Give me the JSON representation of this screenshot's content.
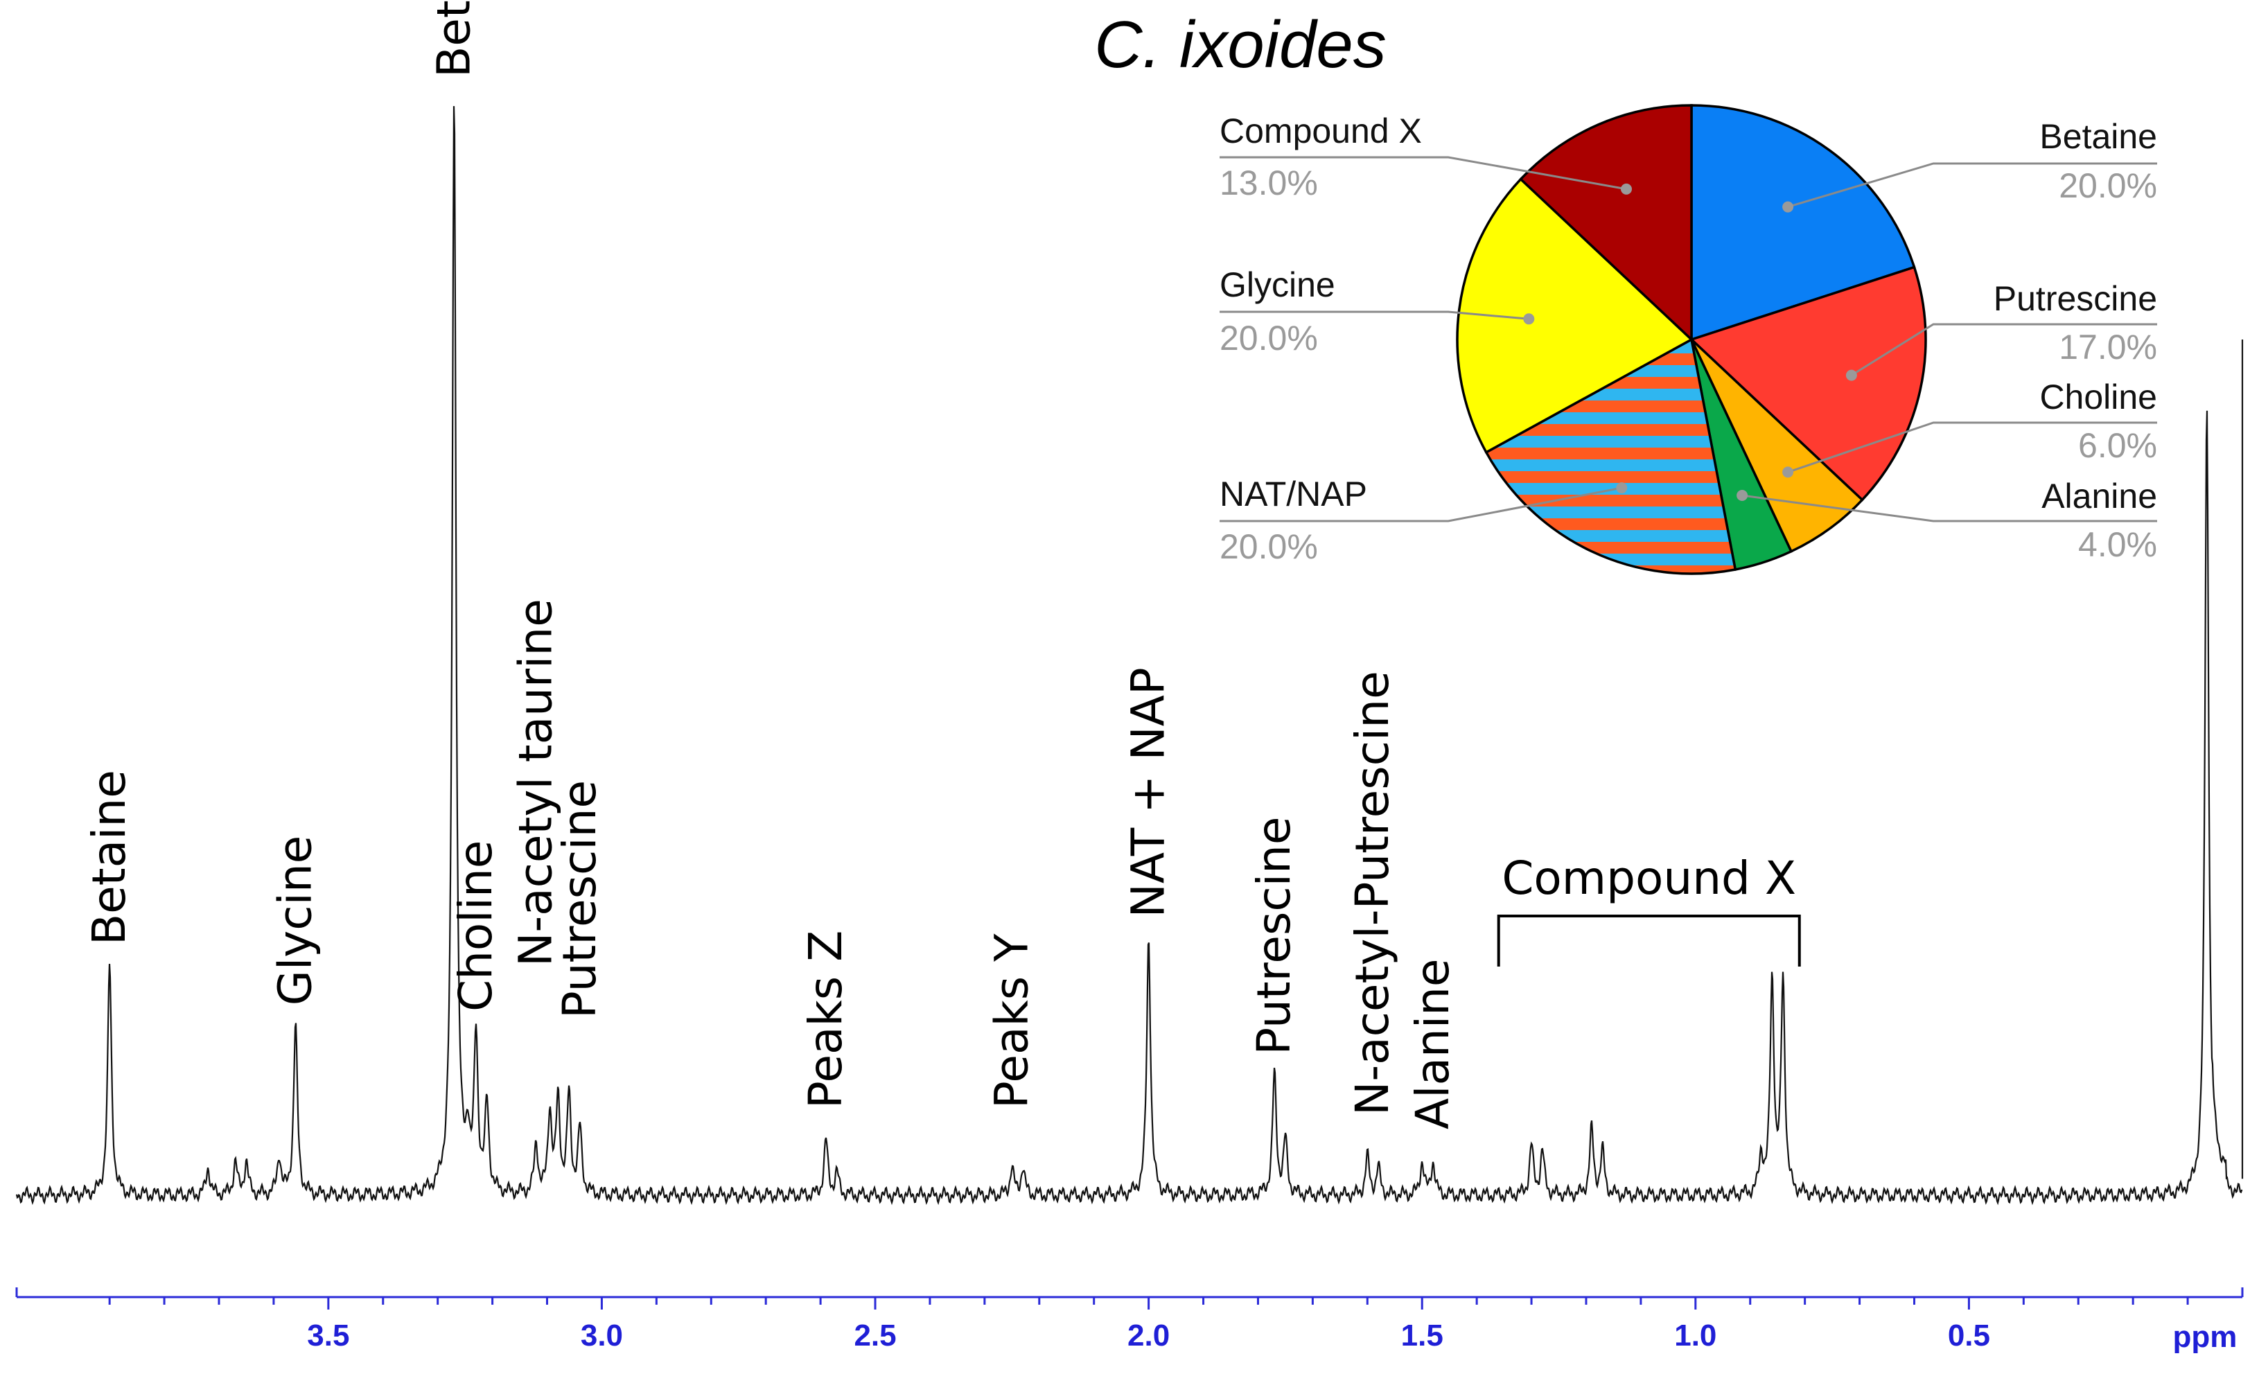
{
  "chart_data": [
    {
      "type": "line",
      "subtype": "nmr-spectrum",
      "xlabel": "ppm",
      "x_reversed": true,
      "xlim": [
        4.07,
        0.0
      ],
      "x_ticks": [
        3.5,
        3.0,
        2.5,
        2.0,
        1.5,
        1.0,
        0.5
      ],
      "x_tick_labels": [
        "3.5",
        "3.0",
        "2.5",
        "2.0",
        "1.5",
        "1.0",
        "0.5"
      ],
      "axis_color": "#2a2ad8",
      "peaks": [
        {
          "ppm": 3.9,
          "height": 0.21
        },
        {
          "ppm": 3.72,
          "height": 0.025
        },
        {
          "ppm": 3.67,
          "height": 0.03
        },
        {
          "ppm": 3.65,
          "height": 0.03
        },
        {
          "ppm": 3.59,
          "height": 0.035
        },
        {
          "ppm": 3.56,
          "height": 0.155
        },
        {
          "ppm": 3.27,
          "height": 1.0
        },
        {
          "ppm": 3.245,
          "height": 0.045
        },
        {
          "ppm": 3.23,
          "height": 0.14
        },
        {
          "ppm": 3.21,
          "height": 0.08
        },
        {
          "ppm": 3.12,
          "height": 0.045
        },
        {
          "ppm": 3.095,
          "height": 0.075
        },
        {
          "ppm": 3.08,
          "height": 0.085
        },
        {
          "ppm": 3.06,
          "height": 0.09
        },
        {
          "ppm": 3.04,
          "height": 0.06
        },
        {
          "ppm": 2.59,
          "height": 0.05
        },
        {
          "ppm": 2.57,
          "height": 0.02
        },
        {
          "ppm": 2.25,
          "height": 0.025
        },
        {
          "ppm": 2.23,
          "height": 0.025
        },
        {
          "ppm": 2.0,
          "height": 0.235
        },
        {
          "ppm": 1.77,
          "height": 0.11
        },
        {
          "ppm": 1.75,
          "height": 0.05
        },
        {
          "ppm": 1.6,
          "height": 0.035
        },
        {
          "ppm": 1.58,
          "height": 0.025
        },
        {
          "ppm": 1.5,
          "height": 0.03
        },
        {
          "ppm": 1.48,
          "height": 0.03
        },
        {
          "ppm": 1.3,
          "height": 0.045
        },
        {
          "ppm": 1.28,
          "height": 0.04
        },
        {
          "ppm": 1.19,
          "height": 0.06
        },
        {
          "ppm": 1.17,
          "height": 0.04
        },
        {
          "ppm": 0.88,
          "height": 0.035
        },
        {
          "ppm": 0.86,
          "height": 0.195
        },
        {
          "ppm": 0.84,
          "height": 0.195
        },
        {
          "ppm": 0.065,
          "height": 0.72
        },
        {
          "ppm": 0.025,
          "height": 0.0
        }
      ],
      "annotations": [
        {
          "text": "Betaine",
          "ppm": 3.9
        },
        {
          "text": "Glycine",
          "ppm": 3.56
        },
        {
          "text": "Betaine",
          "ppm": 3.27
        },
        {
          "text": "Choline",
          "ppm": 3.23
        },
        {
          "text": "N-acetyl taurine",
          "ppm": 3.12
        },
        {
          "text": "Putrescine",
          "ppm": 3.04
        },
        {
          "text": "Peaks Z",
          "ppm": 2.59
        },
        {
          "text": "Peaks Y",
          "ppm": 2.25
        },
        {
          "text": "NAT + NAP",
          "ppm": 2.0
        },
        {
          "text": "Putrescine",
          "ppm": 1.77
        },
        {
          "text": "N-acetyl-Putrescine",
          "ppm": 1.59
        },
        {
          "text": "Alanine",
          "ppm": 1.48
        }
      ],
      "bracket": {
        "text": "Compound X",
        "from_ppm": 1.36,
        "to_ppm": 0.81
      }
    },
    {
      "type": "pie",
      "title": "C. ixoides",
      "slices": [
        {
          "label": "Betaine",
          "pct_label": "20.0%",
          "value": 20.0,
          "color": "#0a7ff5"
        },
        {
          "label": "Putrescine",
          "pct_label": "17.0%",
          "value": 17.0,
          "color": "#ff3b30"
        },
        {
          "label": "Choline",
          "pct_label": "6.0%",
          "value": 6.0,
          "color": "#ffb400"
        },
        {
          "label": "Alanine",
          "pct_label": "4.0%",
          "value": 4.0,
          "color": "#0aa84a"
        },
        {
          "label": "NAT/NAP",
          "pct_label": "20.0%",
          "value": 20.0,
          "color": "striped",
          "stripe_colors": [
            "#ff5a1f",
            "#2fb6f0"
          ]
        },
        {
          "label": "Glycine",
          "pct_label": "20.0%",
          "value": 20.0,
          "color": "#ffff00"
        },
        {
          "label": "Compound X",
          "pct_label": "13.0%",
          "value": 13.0,
          "color": "#aa0000"
        }
      ]
    }
  ]
}
